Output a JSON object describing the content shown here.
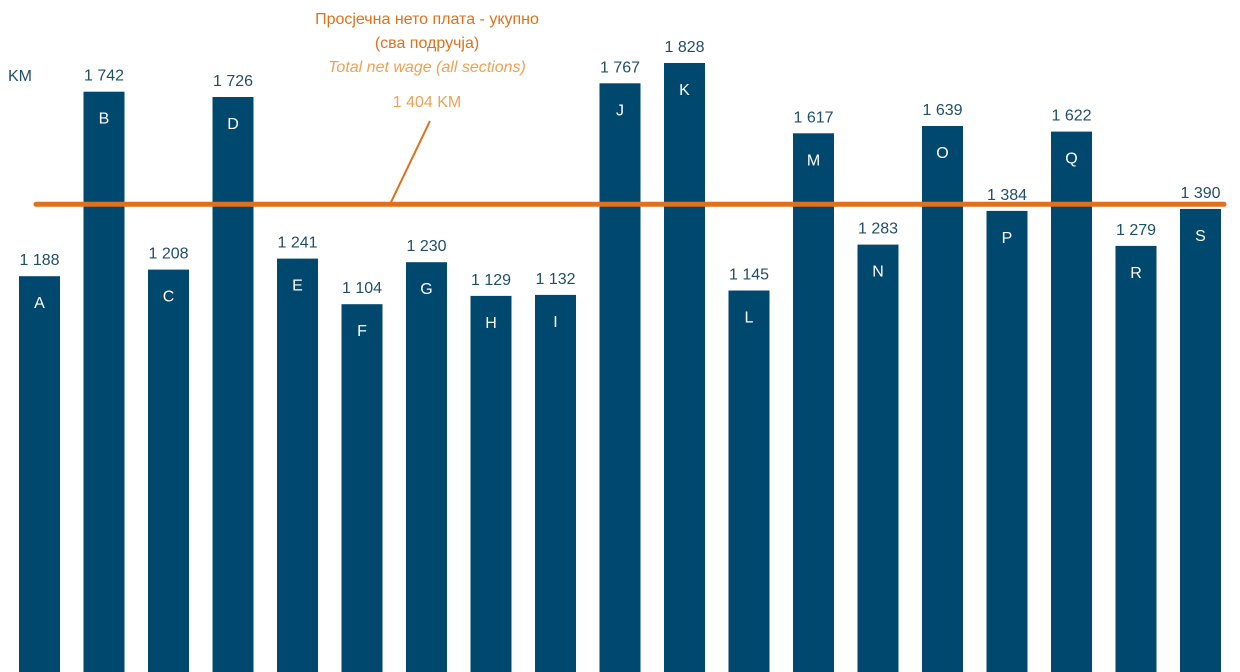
{
  "chart_data": {
    "type": "bar",
    "unit": "KM",
    "categories": [
      "A",
      "B",
      "C",
      "D",
      "E",
      "F",
      "G",
      "H",
      "I",
      "J",
      "K",
      "L",
      "M",
      "N",
      "O",
      "P",
      "Q",
      "R",
      "S"
    ],
    "values": [
      1188,
      1742,
      1208,
      1726,
      1241,
      1104,
      1230,
      1129,
      1132,
      1767,
      1828,
      1145,
      1617,
      1283,
      1639,
      1384,
      1622,
      1279,
      1390
    ],
    "value_labels": [
      "1 188",
      "1 742",
      "1 208",
      "1 726",
      "1 241",
      "1 104",
      "1 230",
      "1 129",
      "1 132",
      "1 767",
      "1 828",
      "1 145",
      "1 617",
      "1 283",
      "1 639",
      "1 384",
      "1 622",
      "1 279",
      "1 390"
    ],
    "average": {
      "value": 1404,
      "title_line1": "Просјечна нето плата - укупно",
      "title_line2": "(сва подручја)",
      "subtitle": "Total net wage (all sections)",
      "value_label": "1 404 KM"
    },
    "ylim": [
      0,
      1828
    ],
    "grid": false,
    "colors": {
      "bar": "#00486d",
      "average_line": "#e0701c",
      "average_title": "#e0701c",
      "average_subtitle": "#f0a054",
      "labels": "#1f4e6a",
      "category_text": "#ffffff"
    }
  }
}
